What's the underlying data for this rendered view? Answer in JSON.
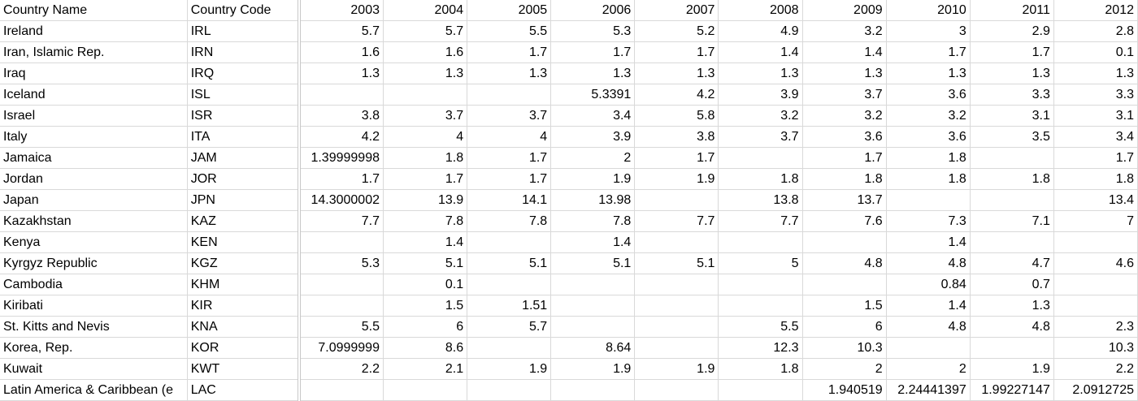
{
  "sheet": {
    "headers": [
      "Country Name",
      "Country Code",
      "2003",
      "2004",
      "2005",
      "2006",
      "2007",
      "2008",
      "2009",
      "2010",
      "2011",
      "2012"
    ],
    "rows": [
      [
        "Ireland",
        "IRL",
        "5.7",
        "5.7",
        "5.5",
        "5.3",
        "5.2",
        "4.9",
        "3.2",
        "3",
        "2.9",
        "2.8"
      ],
      [
        "Iran, Islamic Rep.",
        "IRN",
        "1.6",
        "1.6",
        "1.7",
        "1.7",
        "1.7",
        "1.4",
        "1.4",
        "1.7",
        "1.7",
        "0.1"
      ],
      [
        "Iraq",
        "IRQ",
        "1.3",
        "1.3",
        "1.3",
        "1.3",
        "1.3",
        "1.3",
        "1.3",
        "1.3",
        "1.3",
        "1.3"
      ],
      [
        "Iceland",
        "ISL",
        "",
        "",
        "",
        "5.3391",
        "4.2",
        "3.9",
        "3.7",
        "3.6",
        "3.3",
        "3.3"
      ],
      [
        "Israel",
        "ISR",
        "3.8",
        "3.7",
        "3.7",
        "3.4",
        "5.8",
        "3.2",
        "3.2",
        "3.2",
        "3.1",
        "3.1"
      ],
      [
        "Italy",
        "ITA",
        "4.2",
        "4",
        "4",
        "3.9",
        "3.8",
        "3.7",
        "3.6",
        "3.6",
        "3.5",
        "3.4"
      ],
      [
        "Jamaica",
        "JAM",
        "1.39999998",
        "1.8",
        "1.7",
        "2",
        "1.7",
        "",
        "1.7",
        "1.8",
        "",
        "1.7"
      ],
      [
        "Jordan",
        "JOR",
        "1.7",
        "1.7",
        "1.7",
        "1.9",
        "1.9",
        "1.8",
        "1.8",
        "1.8",
        "1.8",
        "1.8"
      ],
      [
        "Japan",
        "JPN",
        "14.3000002",
        "13.9",
        "14.1",
        "13.98",
        "",
        "13.8",
        "13.7",
        "",
        "",
        "13.4"
      ],
      [
        "Kazakhstan",
        "KAZ",
        "7.7",
        "7.8",
        "7.8",
        "7.8",
        "7.7",
        "7.7",
        "7.6",
        "7.3",
        "7.1",
        "7"
      ],
      [
        "Kenya",
        "KEN",
        "",
        "1.4",
        "",
        "1.4",
        "",
        "",
        "",
        "1.4",
        "",
        ""
      ],
      [
        "Kyrgyz Republic",
        "KGZ",
        "5.3",
        "5.1",
        "5.1",
        "5.1",
        "5.1",
        "5",
        "4.8",
        "4.8",
        "4.7",
        "4.6"
      ],
      [
        "Cambodia",
        "KHM",
        "",
        "0.1",
        "",
        "",
        "",
        "",
        "",
        "0.84",
        "0.7",
        ""
      ],
      [
        "Kiribati",
        "KIR",
        "",
        "1.5",
        "1.51",
        "",
        "",
        "",
        "1.5",
        "1.4",
        "1.3",
        ""
      ],
      [
        "St. Kitts and Nevis",
        "KNA",
        "5.5",
        "6",
        "5.7",
        "",
        "",
        "5.5",
        "6",
        "4.8",
        "4.8",
        "2.3"
      ],
      [
        "Korea, Rep.",
        "KOR",
        "7.0999999",
        "8.6",
        "",
        "8.64",
        "",
        "12.3",
        "10.3",
        "",
        "",
        "10.3"
      ],
      [
        "Kuwait",
        "KWT",
        "2.2",
        "2.1",
        "1.9",
        "1.9",
        "1.9",
        "1.8",
        "2",
        "2",
        "1.9",
        "2.2"
      ],
      [
        "Latin America & Caribbean (e",
        "LAC",
        "",
        "",
        "",
        "",
        "",
        "",
        "1.940519",
        "2.24441397",
        "1.99227147",
        "2.0912725"
      ]
    ]
  }
}
